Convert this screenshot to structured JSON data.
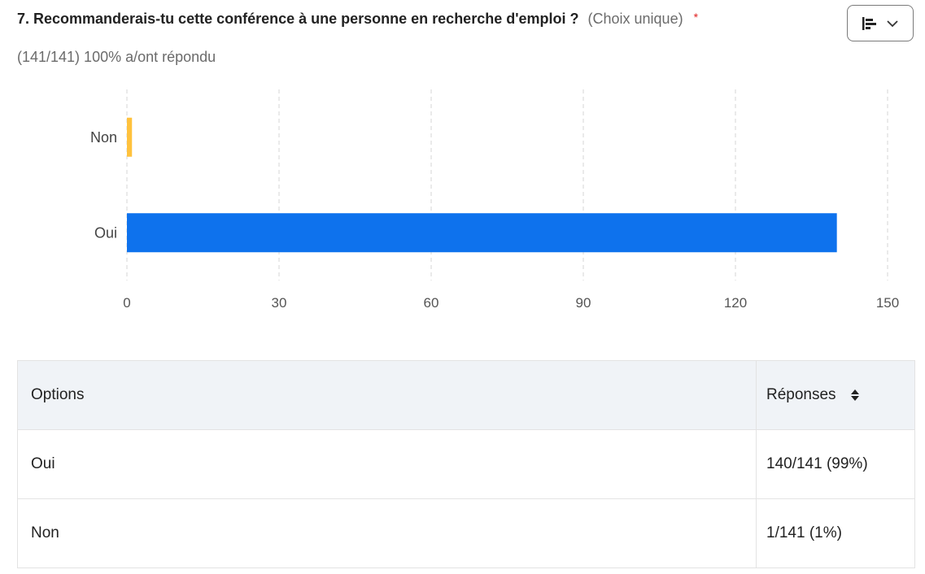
{
  "question": {
    "title": "7. Recommanderais-tu cette conférence à une personne en recherche d'emploi ?",
    "type_label": "(Choix unique)",
    "required_mark": "*",
    "response_summary": "(141/141) 100% a/ont répondu"
  },
  "chart_type_button": {
    "icon": "bar-chart-horizontal-icon",
    "chevron": "chevron-down-icon"
  },
  "chart_data": {
    "type": "bar",
    "orientation": "horizontal",
    "categories": [
      "Non",
      "Oui"
    ],
    "values": [
      1,
      140
    ],
    "colors": [
      "#ffc23d",
      "#0e72ed"
    ],
    "xlim": [
      0,
      150
    ],
    "xticks": [
      "0",
      "30",
      "60",
      "90",
      "120",
      "150"
    ],
    "xtick_values": [
      0,
      30,
      60,
      90,
      120,
      150
    ],
    "grid": true,
    "title": "",
    "xlabel": "",
    "ylabel": ""
  },
  "table": {
    "headers": {
      "options": "Options",
      "responses": "Réponses"
    },
    "rows": [
      {
        "option": "Oui",
        "response": "140/141 (99%)"
      },
      {
        "option": "Non",
        "response": "1/141 (1%)"
      }
    ]
  }
}
